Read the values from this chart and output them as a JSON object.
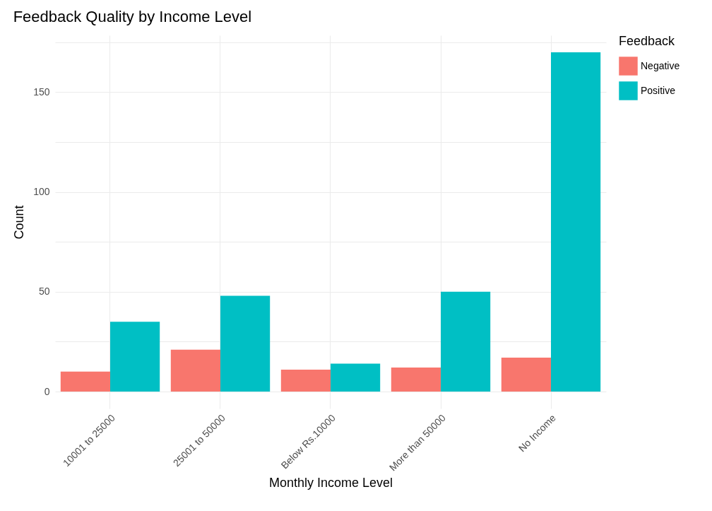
{
  "chart_data": {
    "type": "bar",
    "title": "Feedback Quality by Income Level",
    "xlabel": "Monthly Income Level",
    "ylabel": "Count",
    "legend_title": "Feedback",
    "categories": [
      "10001 to 25000",
      "25001 to 50000",
      "Below Rs.10000",
      "More than 50000",
      "No Income"
    ],
    "series": [
      {
        "name": "Negative",
        "color": "#f8766d",
        "values": [
          10,
          21,
          11,
          12,
          17
        ]
      },
      {
        "name": "Positive",
        "color": "#00bfc4",
        "values": [
          35,
          48,
          14,
          50,
          170
        ]
      }
    ],
    "ylim": [
      -8.5,
      178.5
    ],
    "yticks": [
      0,
      {
        "value": 25,
        "label": null
      },
      50,
      {
        "value": 75,
        "label": null
      },
      100,
      {
        "value": 125,
        "label": null
      },
      150,
      {
        "value": 175,
        "label": null
      }
    ],
    "grid": true,
    "legend": "right"
  }
}
